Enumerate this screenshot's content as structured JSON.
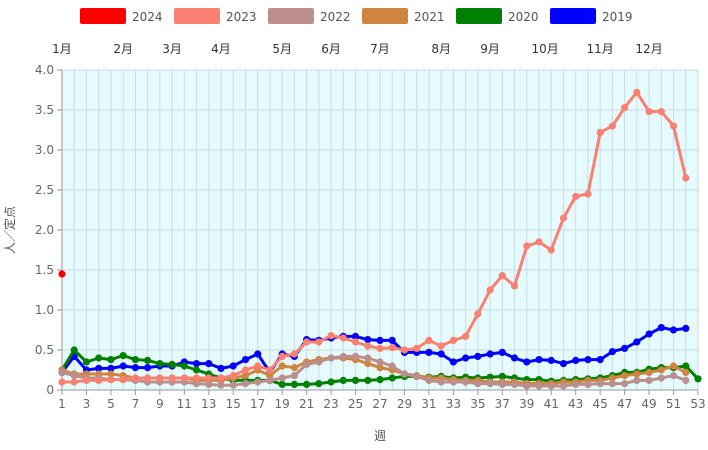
{
  "chart_data": {
    "type": "line",
    "xlabel": "週",
    "ylabel": "人／定点",
    "xlim": [
      1,
      53
    ],
    "ylim": [
      0,
      4.0
    ],
    "x_ticks": [
      1,
      3,
      5,
      7,
      9,
      11,
      13,
      15,
      17,
      19,
      21,
      23,
      25,
      27,
      29,
      31,
      33,
      35,
      37,
      39,
      41,
      43,
      45,
      47,
      49,
      51,
      53
    ],
    "y_ticks": [
      "0",
      "0.5",
      "1.0",
      "1.5",
      "2.0",
      "2.5",
      "3.0",
      "3.5",
      "4.0"
    ],
    "y_tick_values": [
      0,
      0.5,
      1.0,
      1.5,
      2.0,
      2.5,
      3.0,
      3.5,
      4.0
    ],
    "grid": true,
    "plot_background": "#e6fbfd",
    "legend_position": "top",
    "month_labels": [
      {
        "label": "1月",
        "week": 1
      },
      {
        "label": "2月",
        "week": 6
      },
      {
        "label": "3月",
        "week": 10
      },
      {
        "label": "4月",
        "week": 14
      },
      {
        "label": "5月",
        "week": 19
      },
      {
        "label": "6月",
        "week": 23
      },
      {
        "label": "7月",
        "week": 27
      },
      {
        "label": "8月",
        "week": 32
      },
      {
        "label": "9月",
        "week": 36
      },
      {
        "label": "10月",
        "week": 40.5
      },
      {
        "label": "11月",
        "week": 45
      },
      {
        "label": "12月",
        "week": 49
      }
    ],
    "series": [
      {
        "name": "2024",
        "color": "#ff0000",
        "values": [
          1.45
        ]
      },
      {
        "name": "2023",
        "color": "#fa8072",
        "values": [
          0.1,
          0.1,
          0.12,
          0.12,
          0.13,
          0.13,
          0.15,
          0.15,
          0.15,
          0.15,
          0.15,
          0.15,
          0.15,
          0.15,
          0.18,
          0.25,
          0.3,
          0.25,
          0.42,
          0.45,
          0.6,
          0.6,
          0.68,
          0.65,
          0.6,
          0.55,
          0.52,
          0.53,
          0.5,
          0.52,
          0.62,
          0.55,
          0.62,
          0.67,
          0.95,
          1.25,
          1.43,
          1.3,
          1.8,
          1.85,
          1.75,
          2.15,
          2.42,
          2.45,
          3.22,
          3.3,
          3.53,
          3.72,
          3.48,
          3.48,
          3.3,
          2.65
        ]
      },
      {
        "name": "2022",
        "color": "#bc8f8f",
        "values": [
          0.22,
          0.18,
          0.15,
          0.15,
          0.13,
          0.13,
          0.12,
          0.1,
          0.1,
          0.1,
          0.1,
          0.08,
          0.07,
          0.06,
          0.06,
          0.08,
          0.1,
          0.12,
          0.15,
          0.18,
          0.32,
          0.35,
          0.4,
          0.42,
          0.42,
          0.4,
          0.35,
          0.3,
          0.2,
          0.17,
          0.12,
          0.1,
          0.1,
          0.1,
          0.08,
          0.08,
          0.07,
          0.07,
          0.05,
          0.05,
          0.05,
          0.05,
          0.07,
          0.07,
          0.08,
          0.08,
          0.08,
          0.12,
          0.12,
          0.15,
          0.18,
          0.12
        ]
      },
      {
        "name": "2021",
        "color": "#cd853f",
        "values": [
          0.25,
          0.2,
          0.2,
          0.2,
          0.2,
          0.18,
          0.15,
          0.15,
          0.15,
          0.15,
          0.15,
          0.12,
          0.12,
          0.12,
          0.15,
          0.18,
          0.25,
          0.18,
          0.3,
          0.28,
          0.35,
          0.38,
          0.4,
          0.4,
          0.38,
          0.33,
          0.28,
          0.25,
          0.2,
          0.18,
          0.15,
          0.15,
          0.13,
          0.12,
          0.12,
          0.1,
          0.1,
          0.1,
          0.08,
          0.08,
          0.08,
          0.1,
          0.1,
          0.12,
          0.12,
          0.15,
          0.18,
          0.2,
          0.22,
          0.25,
          0.3,
          0.22
        ]
      },
      {
        "name": "2020",
        "color": "#008000",
        "values": [
          0.25,
          0.5,
          0.35,
          0.4,
          0.38,
          0.43,
          0.38,
          0.37,
          0.33,
          0.32,
          0.3,
          0.25,
          0.2,
          0.15,
          0.12,
          0.12,
          0.12,
          0.12,
          0.07,
          0.07,
          0.07,
          0.08,
          0.1,
          0.12,
          0.12,
          0.12,
          0.13,
          0.15,
          0.17,
          0.17,
          0.16,
          0.17,
          0.15,
          0.16,
          0.15,
          0.16,
          0.17,
          0.15,
          0.13,
          0.13,
          0.11,
          0.12,
          0.13,
          0.14,
          0.15,
          0.18,
          0.22,
          0.22,
          0.26,
          0.28,
          0.28,
          0.3,
          0.14
        ]
      },
      {
        "name": "2019",
        "color": "#0000ff",
        "values": [
          0.22,
          0.42,
          0.25,
          0.27,
          0.27,
          0.3,
          0.28,
          0.28,
          0.3,
          0.3,
          0.35,
          0.33,
          0.33,
          0.27,
          0.3,
          0.38,
          0.45,
          0.22,
          0.45,
          0.42,
          0.63,
          0.62,
          0.65,
          0.67,
          0.67,
          0.63,
          0.62,
          0.62,
          0.47,
          0.47,
          0.47,
          0.45,
          0.35,
          0.4,
          0.42,
          0.45,
          0.47,
          0.4,
          0.35,
          0.38,
          0.37,
          0.33,
          0.37,
          0.38,
          0.38,
          0.48,
          0.52,
          0.6,
          0.7,
          0.78,
          0.75,
          0.77
        ]
      }
    ]
  }
}
